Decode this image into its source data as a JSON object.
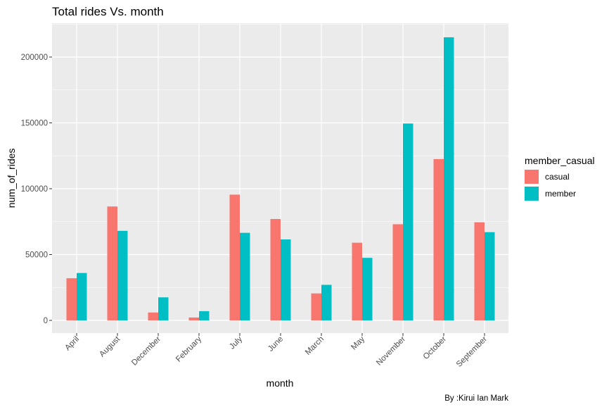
{
  "chart_data": {
    "type": "bar",
    "title": "Total rides Vs. month",
    "xlabel": "month",
    "ylabel": "num_of_rides",
    "caption": "By :Kirui Ian Mark",
    "categories": [
      "April",
      "August",
      "December",
      "February",
      "July",
      "June",
      "March",
      "May",
      "November",
      "October",
      "September"
    ],
    "series": [
      {
        "name": "casual",
        "color": "#F8766D",
        "values": [
          32000,
          86500,
          6000,
          2200,
          95500,
          77000,
          20500,
          59000,
          73000,
          122500,
          74500
        ]
      },
      {
        "name": "member",
        "color": "#00BFC4",
        "values": [
          36000,
          68000,
          17500,
          7000,
          66500,
          61500,
          27000,
          47500,
          149500,
          215000,
          67000
        ]
      }
    ],
    "ylim": [
      0,
      222000
    ],
    "yticks": [
      0,
      50000,
      100000,
      150000,
      200000
    ],
    "ytick_labels": [
      "0",
      "50000",
      "100000",
      "150000",
      "200000"
    ],
    "legend": {
      "title": "member_casual",
      "position": "right"
    },
    "grid": true,
    "panel_background": "#EBEBEB"
  }
}
